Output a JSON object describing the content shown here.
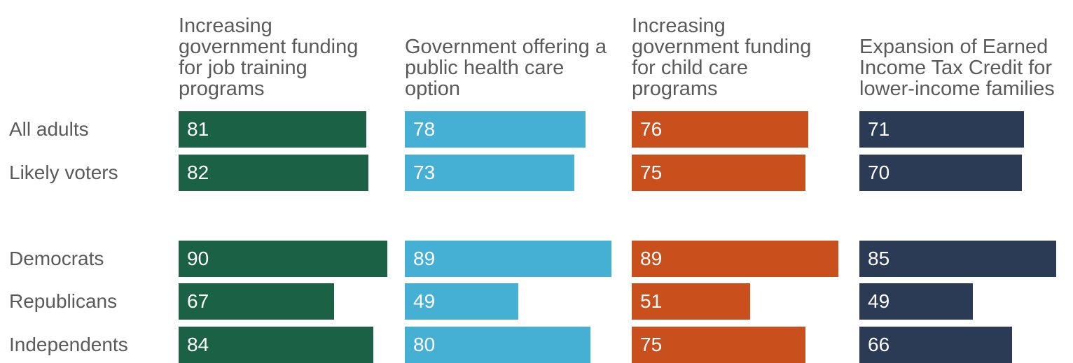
{
  "chart_data": {
    "type": "bar",
    "categories": [
      "All adults",
      "Likely voters",
      null,
      "Democrats",
      "Republicans",
      "Independents"
    ],
    "series": [
      {
        "name": "Increasing government funding for job training programs",
        "color": "#1a6146",
        "values": [
          81,
          82,
          null,
          90,
          67,
          84
        ]
      },
      {
        "name": "Government offering a public health care option",
        "color": "#45afd4",
        "values": [
          78,
          73,
          null,
          89,
          49,
          80
        ]
      },
      {
        "name": "Increasing government funding for child care programs",
        "color": "#c94f1c",
        "values": [
          76,
          75,
          null,
          89,
          51,
          75
        ]
      },
      {
        "name": "Expansion of Earned Income Tax Credit for lower-income families",
        "color": "#2b3a55",
        "values": [
          71,
          70,
          null,
          85,
          49,
          66
        ]
      }
    ]
  }
}
